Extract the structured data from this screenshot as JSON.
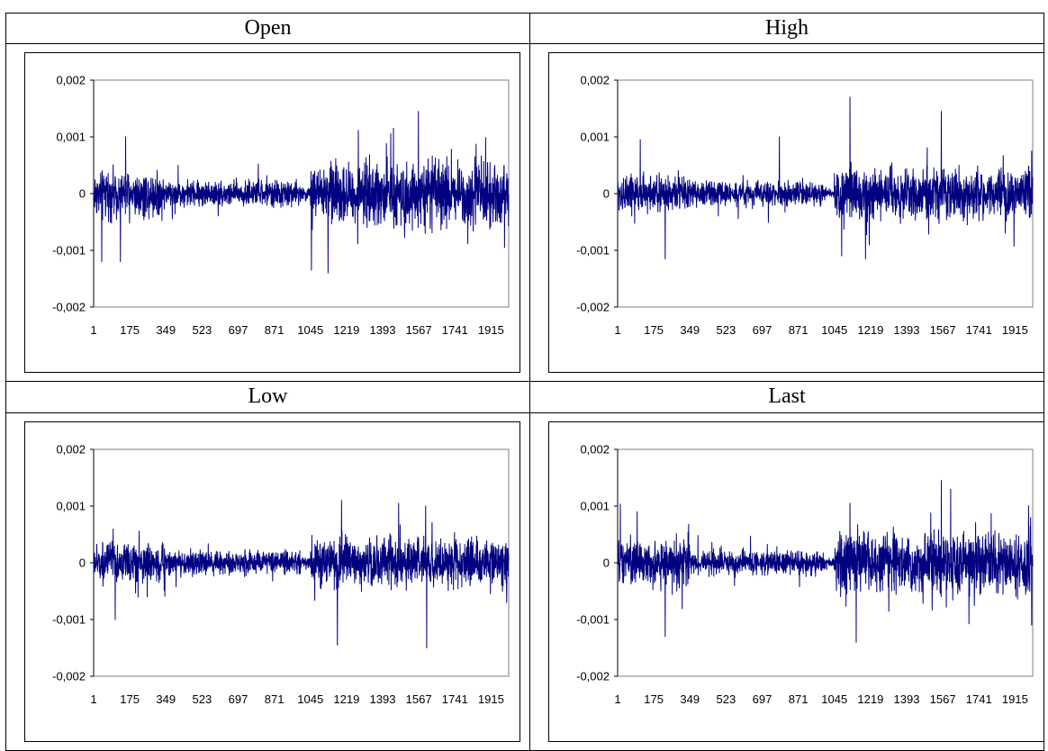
{
  "table": {
    "headers": [
      "Open",
      "High",
      "Low",
      "Last"
    ]
  },
  "chart_data": [
    {
      "type": "line",
      "name": "Open",
      "x_range": [
        1,
        2000
      ],
      "x_ticks": [
        "1",
        "175",
        "349",
        "523",
        "697",
        "871",
        "1045",
        "1219",
        "1393",
        "1567",
        "1741",
        "1915"
      ],
      "y_ticks": [
        "0,002",
        "0,001",
        "0",
        "-0,001",
        "-0,002"
      ],
      "ylim": [
        -0.002,
        0.002
      ],
      "color": "#000080",
      "regimes": [
        {
          "from": 1,
          "to": 350,
          "amp": 0.00035
        },
        {
          "from": 350,
          "to": 1000,
          "amp": 0.0002
        },
        {
          "from": 1000,
          "to": 1045,
          "amp": 0.0001
        },
        {
          "from": 1045,
          "to": 1400,
          "amp": 0.00045
        },
        {
          "from": 1400,
          "to": 2000,
          "amp": 0.0005
        }
      ],
      "extremes": [
        {
          "x": 40,
          "y": -0.0012
        },
        {
          "x": 155,
          "y": 0.001
        },
        {
          "x": 130,
          "y": -0.0012
        },
        {
          "x": 1050,
          "y": -0.00135
        },
        {
          "x": 1130,
          "y": -0.0014
        },
        {
          "x": 1565,
          "y": 0.00145
        },
        {
          "x": 1445,
          "y": 0.00115
        },
        {
          "x": 1980,
          "y": -0.00095
        }
      ]
    },
    {
      "type": "line",
      "name": "High",
      "x_range": [
        1,
        2000
      ],
      "x_ticks": [
        "1",
        "175",
        "349",
        "523",
        "697",
        "871",
        "1045",
        "1219",
        "1393",
        "1567",
        "1741",
        "1915"
      ],
      "y_ticks": [
        "0,002",
        "0,001",
        "0",
        "-0,001",
        "-0,002"
      ],
      "ylim": [
        -0.002,
        0.002
      ],
      "color": "#000080",
      "regimes": [
        {
          "from": 1,
          "to": 350,
          "amp": 0.0003
        },
        {
          "from": 350,
          "to": 1000,
          "amp": 0.00018
        },
        {
          "from": 1000,
          "to": 1045,
          "amp": 8e-05
        },
        {
          "from": 1045,
          "to": 1400,
          "amp": 0.00038
        },
        {
          "from": 1400,
          "to": 2000,
          "amp": 0.0004
        }
      ],
      "extremes": [
        {
          "x": 230,
          "y": -0.00115
        },
        {
          "x": 110,
          "y": 0.00095
        },
        {
          "x": 1120,
          "y": 0.0017
        },
        {
          "x": 1080,
          "y": -0.0011
        },
        {
          "x": 1195,
          "y": -0.00115
        },
        {
          "x": 1560,
          "y": 0.00145
        },
        {
          "x": 780,
          "y": 0.001
        },
        {
          "x": 1995,
          "y": 0.00075
        }
      ]
    },
    {
      "type": "line",
      "name": "Low",
      "x_range": [
        1,
        2000
      ],
      "x_ticks": [
        "1",
        "175",
        "349",
        "523",
        "697",
        "871",
        "1045",
        "1219",
        "1393",
        "1567",
        "1741",
        "1915"
      ],
      "y_ticks": [
        "0,002",
        "0,001",
        "0",
        "-0,001",
        "-0,002"
      ],
      "ylim": [
        -0.002,
        0.002
      ],
      "color": "#000080",
      "regimes": [
        {
          "from": 1,
          "to": 350,
          "amp": 0.0003
        },
        {
          "from": 350,
          "to": 1000,
          "amp": 0.00018
        },
        {
          "from": 1000,
          "to": 1045,
          "amp": 8e-05
        },
        {
          "from": 1045,
          "to": 1400,
          "amp": 0.0004
        },
        {
          "from": 1400,
          "to": 2000,
          "amp": 0.00038
        }
      ],
      "extremes": [
        {
          "x": 105,
          "y": -0.001
        },
        {
          "x": 1175,
          "y": -0.00145
        },
        {
          "x": 1195,
          "y": 0.0011
        },
        {
          "x": 1605,
          "y": -0.0015
        },
        {
          "x": 1470,
          "y": 0.00105
        },
        {
          "x": 1600,
          "y": 0.001
        },
        {
          "x": 1990,
          "y": -0.0007
        }
      ]
    },
    {
      "type": "line",
      "name": "Last",
      "x_range": [
        1,
        2000
      ],
      "x_ticks": [
        "1",
        "175",
        "349",
        "523",
        "697",
        "871",
        "1045",
        "1219",
        "1393",
        "1567",
        "1741",
        "1915"
      ],
      "y_ticks": [
        "0,002",
        "0,001",
        "0",
        "-0,001",
        "-0,002"
      ],
      "ylim": [
        -0.002,
        0.002
      ],
      "color": "#000080",
      "regimes": [
        {
          "from": 1,
          "to": 350,
          "amp": 0.00035
        },
        {
          "from": 350,
          "to": 1000,
          "amp": 0.00018
        },
        {
          "from": 1000,
          "to": 1045,
          "amp": 8e-05
        },
        {
          "from": 1045,
          "to": 1400,
          "amp": 0.00045
        },
        {
          "from": 1400,
          "to": 2000,
          "amp": 0.0005
        }
      ],
      "extremes": [
        {
          "x": 230,
          "y": -0.0013
        },
        {
          "x": 95,
          "y": 0.0009
        },
        {
          "x": 1150,
          "y": -0.0014
        },
        {
          "x": 1120,
          "y": 0.00105
        },
        {
          "x": 1560,
          "y": 0.00145
        },
        {
          "x": 1605,
          "y": 0.0013
        },
        {
          "x": 1995,
          "y": -0.0011
        },
        {
          "x": 1990,
          "y": 0.0008
        }
      ]
    }
  ]
}
